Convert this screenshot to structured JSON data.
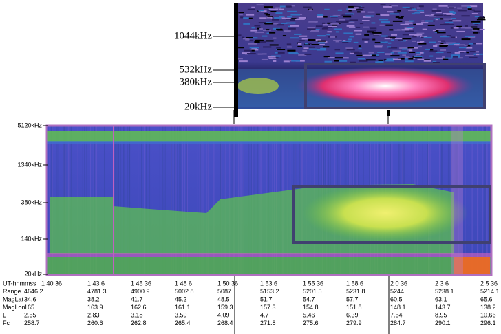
{
  "inset": {
    "frequency_labels": [
      "1044kHz",
      "532kHz",
      "380kHz",
      "20kHz"
    ]
  },
  "spectrogram": {
    "frequency_labels": [
      "5120kHz",
      "1340kHz",
      "380kHz",
      "140kHz",
      "20kHz"
    ]
  },
  "ephemeris": {
    "rows": [
      {
        "label": "UT-hhmmss",
        "values": [
          "1 40 36",
          "1 43 6",
          "1 45 36",
          "1 48 6",
          "1 50 36",
          "1 53 6",
          "1 55 36",
          "1 58 6",
          "2 0 36",
          "2 3 6",
          "2 5 36"
        ]
      },
      {
        "label": "Range",
        "values": [
          "4646.2",
          "4781.3",
          "4900.9",
          "5002.8",
          "5087",
          "5153.2",
          "5201.5",
          "5231.8",
          "5244",
          "5238.1",
          "5214.1"
        ]
      },
      {
        "label": "MagLat",
        "values": [
          "34.6",
          "38.2",
          "41.7",
          "45.2",
          "48.5",
          "51.7",
          "54.7",
          "57.7",
          "60.5",
          "63.1",
          "65.6"
        ]
      },
      {
        "label": "MagLon",
        "values": [
          "165",
          "163.9",
          "162.6",
          "161.1",
          "159.3",
          "157.3",
          "154.8",
          "151.8",
          "148.1",
          "143.7",
          "138.2"
        ]
      },
      {
        "label": "L",
        "values": [
          "2.55",
          "2.83",
          "3.18",
          "3.59",
          "4.09",
          "4.7",
          "5.46",
          "6.39",
          "7.54",
          "8.95",
          "10.66"
        ]
      },
      {
        "label": "Fc",
        "values": [
          "258.7",
          "260.6",
          "262.8",
          "265.4",
          "268.4",
          "271.8",
          "275.6",
          "279.9",
          "284.7",
          "290.1",
          "296.1"
        ]
      }
    ]
  }
}
